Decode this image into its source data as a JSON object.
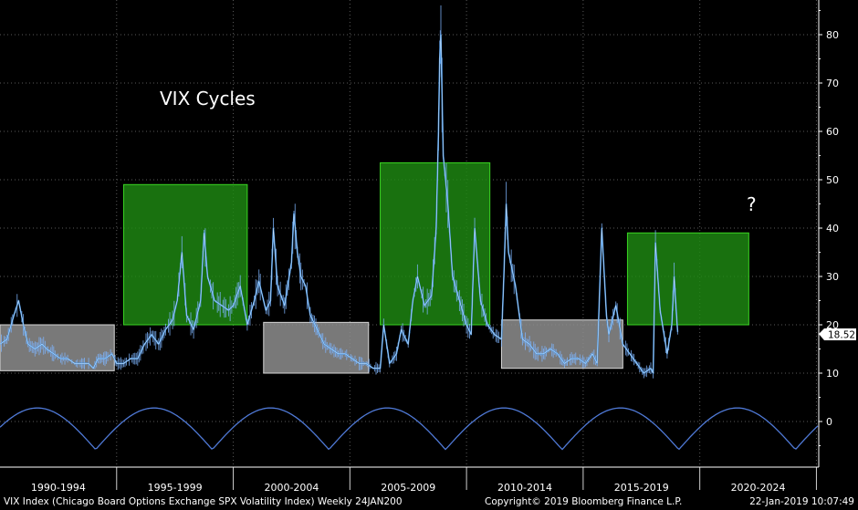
{
  "chart_data": {
    "type": "line",
    "title": "VIX Cycles",
    "annotation": "?",
    "ylim": [
      -6,
      86
    ],
    "y_ticks": [
      0,
      10,
      20,
      30,
      40,
      50,
      60,
      70,
      80
    ],
    "last_value": "18.52",
    "x_period_labels": [
      "1990-1994",
      "1995-1999",
      "2000-2004",
      "2005-2009",
      "2010-2014",
      "2015-2019",
      "2020-2024"
    ],
    "footer_left": "VIX Index (Chicago Board Options Exchange SPX Volatility Index)  Weekly 24JAN200",
    "footer_center": "Copyright© 2019 Bloomberg Finance L.P.",
    "footer_right": "22-Jan-2019 10:07:49",
    "colors": {
      "background": "#000000",
      "grid": "#5a5a5a",
      "axis_text": "#ffffff",
      "line": "#3d8fe0",
      "line_fill": "#7fb6ff",
      "high_regime": "#1f8a12",
      "high_regime_border": "#39d422",
      "low_regime": "#8e8e8e",
      "cycle_curve": "#4f79d6"
    },
    "regime_boxes": [
      {
        "type": "low",
        "start": 1990.0,
        "end": 1994.9,
        "low": 10.5,
        "high": 20
      },
      {
        "type": "high",
        "start": 1995.3,
        "end": 2000.6,
        "low": 20,
        "high": 49
      },
      {
        "type": "low",
        "start": 2001.3,
        "end": 2005.8,
        "low": 10,
        "high": 20.5
      },
      {
        "type": "high",
        "start": 2006.3,
        "end": 2011.0,
        "low": 20,
        "high": 53.5
      },
      {
        "type": "low",
        "start": 2011.5,
        "end": 2016.7,
        "low": 11,
        "high": 21
      },
      {
        "type": "high",
        "start": 2016.9,
        "end": 2022.1,
        "low": 20,
        "high": 39
      }
    ],
    "series": [
      {
        "x": [
          1990.0,
          1990.3,
          1990.6,
          1990.8,
          1991.0,
          1991.2,
          1991.5,
          1991.8,
          1992.0,
          1992.3,
          1992.6,
          1992.9,
          1993.2,
          1993.5,
          1993.8,
          1994.0,
          1994.2,
          1994.5,
          1994.8,
          1995.0,
          1995.3,
          1995.6,
          1995.9,
          1996.2,
          1996.5,
          1996.8,
          1997.1,
          1997.4,
          1997.6,
          1997.8,
          1998.0,
          1998.3,
          1998.6,
          1998.75,
          1998.9,
          1999.2,
          1999.5,
          1999.8,
          2000.0,
          2000.3,
          2000.6,
          2000.9,
          2001.1,
          2001.4,
          2001.6,
          2001.72,
          2001.9,
          2002.2,
          2002.5,
          2002.6,
          2002.75,
          2002.9,
          2003.1,
          2003.3,
          2003.6,
          2003.9,
          2004.2,
          2004.5,
          2004.8,
          2005.1,
          2005.4,
          2005.7,
          2006.0,
          2006.3,
          2006.45,
          2006.7,
          2007.0,
          2007.2,
          2007.5,
          2007.7,
          2007.9,
          2008.2,
          2008.5,
          2008.7,
          2008.8,
          2008.85,
          2008.9,
          2009.0,
          2009.2,
          2009.4,
          2009.7,
          2010.0,
          2010.2,
          2010.35,
          2010.6,
          2010.9,
          2011.2,
          2011.5,
          2011.6,
          2011.7,
          2011.8,
          2012.1,
          2012.4,
          2012.7,
          2013.0,
          2013.3,
          2013.6,
          2013.9,
          2014.2,
          2014.5,
          2014.8,
          2015.1,
          2015.4,
          2015.6,
          2015.8,
          2016.0,
          2016.1,
          2016.4,
          2016.7,
          2017.0,
          2017.3,
          2017.6,
          2017.9,
          2018.0,
          2018.1,
          2018.3,
          2018.6,
          2018.8,
          2018.9,
          2018.95,
          2019.05
        ],
        "values": [
          16,
          17,
          22,
          25,
          20,
          16,
          15,
          16,
          15,
          14,
          13,
          13,
          12,
          12,
          12,
          11,
          13,
          13,
          14,
          12,
          12,
          13,
          13,
          16,
          18,
          16,
          19,
          21,
          25,
          35,
          22,
          19,
          25,
          39,
          30,
          25,
          24,
          23,
          24,
          28,
          20,
          25,
          29,
          23,
          25,
          40,
          28,
          24,
          33,
          43,
          35,
          30,
          28,
          22,
          19,
          16,
          15,
          14,
          14,
          13,
          12,
          12,
          11,
          11,
          20,
          12,
          14,
          19,
          16,
          25,
          30,
          24,
          26,
          40,
          60,
          75,
          80,
          55,
          45,
          30,
          25,
          20,
          18,
          40,
          25,
          20,
          18,
          17,
          30,
          45,
          35,
          28,
          17,
          16,
          14,
          14,
          15,
          14,
          12,
          13,
          13,
          12,
          14,
          12,
          40,
          22,
          18,
          24,
          16,
          14,
          12,
          10,
          11,
          10,
          37,
          23,
          14,
          20,
          30,
          26,
          18.52
        ]
      }
    ]
  }
}
